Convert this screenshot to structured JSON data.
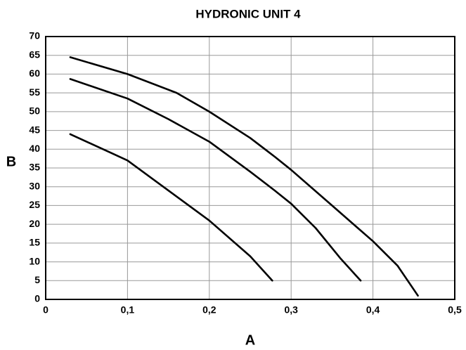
{
  "chart_data": {
    "type": "line",
    "title": "HYDRONIC UNIT 4",
    "x_label": "A",
    "y_label": "B",
    "series": [
      {
        "color": "#000000",
        "x": [
          0.03,
          0.1,
          0.16,
          0.2,
          0.25,
          0.28,
          0.3,
          0.35,
          0.4,
          0.43,
          0.455
        ],
        "values": [
          64.5,
          60,
          55,
          50,
          43,
          38,
          34.5,
          25,
          15.5,
          9,
          1
        ]
      },
      {
        "color": "#000000",
        "x": [
          0.03,
          0.1,
          0.15,
          0.2,
          0.25,
          0.28,
          0.3,
          0.33,
          0.36,
          0.385
        ],
        "values": [
          58.7,
          53.5,
          48,
          42,
          34,
          29,
          25.5,
          19,
          11,
          5
        ]
      },
      {
        "color": "#000000",
        "x": [
          0.03,
          0.08,
          0.1,
          0.15,
          0.2,
          0.25,
          0.277
        ],
        "values": [
          44,
          39,
          37,
          29,
          21,
          11.5,
          5
        ]
      }
    ],
    "xlim": [
      0,
      0.5
    ],
    "xticks": [
      0,
      {
        "value": 0.1,
        "label": "0,1"
      },
      {
        "value": 0.2,
        "label": "0,2"
      },
      {
        "value": 0.3,
        "label": "0,3"
      },
      {
        "value": 0.4,
        "label": "0,4"
      },
      {
        "value": 0.5,
        "label": "0,5"
      }
    ],
    "ylim": [
      0,
      70
    ],
    "yticks": [
      0,
      5,
      10,
      15,
      20,
      25,
      30,
      35,
      40,
      45,
      50,
      55,
      60,
      65,
      70
    ],
    "grid": true
  }
}
